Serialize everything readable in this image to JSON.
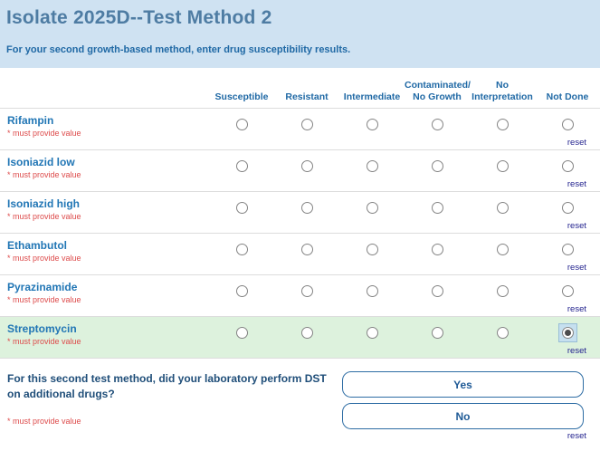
{
  "header": {
    "title": "Isolate 2025D--Test Method 2",
    "subtitle": "For your second growth-based method, enter drug susceptibility results."
  },
  "table": {
    "columns": [
      "Susceptible",
      "Resistant",
      "Intermediate",
      "Contaminated/\nNo Growth",
      "No\nInterpretation",
      "Not Done"
    ],
    "required_note": "* must provide value",
    "reset_label": "reset",
    "rows": [
      {
        "drug": "Rifampin",
        "selected_index": null,
        "selected_label": null,
        "highlighted": false
      },
      {
        "drug": "Isoniazid low",
        "selected_index": null,
        "selected_label": null,
        "highlighted": false
      },
      {
        "drug": "Isoniazid high",
        "selected_index": null,
        "selected_label": null,
        "highlighted": false
      },
      {
        "drug": "Ethambutol",
        "selected_index": null,
        "selected_label": null,
        "highlighted": false
      },
      {
        "drug": "Pyrazinamide",
        "selected_index": null,
        "selected_label": null,
        "highlighted": false
      },
      {
        "drug": "Streptomycin",
        "selected_index": 5,
        "selected_label": "Not Done",
        "highlighted": true
      }
    ]
  },
  "question": {
    "text": "For this second test method, did your laboratory perform DST on additional drugs?",
    "required_note": "* must provide value",
    "options": [
      "Yes",
      "No"
    ],
    "reset_label": "reset"
  },
  "colors": {
    "header_band": "#cfe2f2",
    "title_blue": "#4e7ca3",
    "label_blue": "#2176b5",
    "question_blue": "#1f4e79",
    "button_blue": "#2e6da4",
    "required_red": "#dd4b4b",
    "highlight_green": "#ddf2dd",
    "focus_blue": "#c6e0ef",
    "reset_navy": "#24248f"
  }
}
